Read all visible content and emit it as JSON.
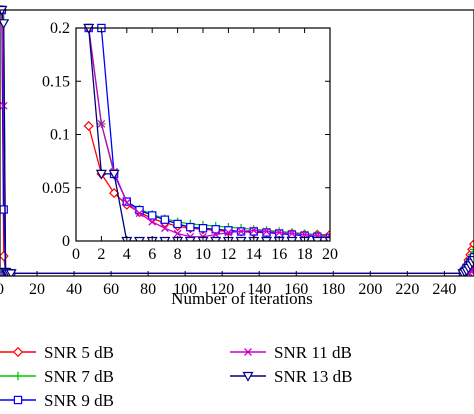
{
  "chart_data": [
    {
      "type": "line",
      "role": "main",
      "xlabel": "Number of iterations",
      "ylabel": "",
      "xlim": [
        0,
        256
      ],
      "ylim": [
        0,
        0.2
      ],
      "x_ticks": [
        0,
        20,
        40,
        60,
        80,
        100,
        120,
        140,
        160,
        180,
        200,
        220,
        240
      ],
      "x_tick_labels": [
        "0",
        "20",
        "40",
        "60",
        "80",
        "100",
        "120",
        "140",
        "160",
        "180",
        "200",
        "220",
        "240"
      ],
      "grid": false,
      "legend_position": "bottom",
      "series": [
        {
          "name": "SNR 5 dB",
          "color": "#ff0000",
          "marker": "diamond",
          "x": [
            0,
            1,
            2,
            3,
            4,
            5,
            6,
            250,
            251,
            252,
            253,
            254,
            255,
            256
          ],
          "y": [
            0.2,
            0.2,
            0.015,
            0.003,
            0.002,
            0.002,
            0.002,
            0.002,
            0.004,
            0.008,
            0.012,
            0.016,
            0.02,
            0.024
          ]
        },
        {
          "name": "SNR 7 dB",
          "color": "#00cc00",
          "marker": "plus",
          "x": [
            0,
            1,
            2,
            3,
            4,
            5,
            6,
            250,
            251,
            252,
            253,
            254,
            255,
            256
          ],
          "y": [
            0.2,
            0.2,
            0.2,
            0.003,
            0.002,
            0.002,
            0.002,
            0.002,
            0.004,
            0.007,
            0.01,
            0.013,
            0.016,
            0.02
          ]
        },
        {
          "name": "SNR 9 dB",
          "color": "#0000ff",
          "marker": "square",
          "x": [
            0,
            1,
            2,
            3,
            4,
            5,
            6,
            250,
            251,
            252,
            253,
            254,
            255,
            256
          ],
          "y": [
            0.2,
            0.2,
            0.05,
            0.003,
            0.002,
            0.002,
            0.002,
            0.002,
            0.004,
            0.006,
            0.008,
            0.01,
            0.012,
            0.014
          ]
        },
        {
          "name": "SNR 11 dB",
          "color": "#cc00cc",
          "marker": "x",
          "x": [
            0,
            1,
            2,
            3,
            4,
            5,
            6,
            250,
            251,
            252,
            253,
            254,
            255,
            256
          ],
          "y": [
            0.2,
            0.2,
            0.128,
            0.003,
            0.002,
            0.002,
            0.002,
            0.002,
            0.002,
            0.003,
            0.003,
            0.004,
            0.004,
            0.005
          ]
        },
        {
          "name": "SNR 13 dB",
          "color": "#000080",
          "marker": "triangle-down",
          "x": [
            0,
            1,
            2,
            3,
            4,
            5,
            6,
            250,
            251,
            252,
            253,
            254,
            255,
            256
          ],
          "y": [
            0.2,
            0.2,
            0.19,
            0.003,
            0.002,
            0.002,
            0.002,
            0.002,
            0.003,
            0.004,
            0.006,
            0.008,
            0.01,
            0.012
          ]
        }
      ]
    },
    {
      "type": "line",
      "role": "inset",
      "xlim": [
        0,
        20
      ],
      "ylim": [
        0,
        0.2
      ],
      "x_ticks": [
        0,
        2,
        4,
        6,
        8,
        10,
        12,
        14,
        16,
        18,
        20
      ],
      "x_tick_labels": [
        "0",
        "2",
        "4",
        "6",
        "8",
        "10",
        "12",
        "14",
        "16",
        "18",
        "20"
      ],
      "y_ticks": [
        0,
        0.05,
        0.1,
        0.15,
        0.2
      ],
      "y_tick_labels": [
        "0",
        "0.05",
        "0.1",
        "0.15",
        "0.2"
      ],
      "grid": false,
      "x": [
        1,
        2,
        3,
        4,
        5,
        6,
        7,
        8,
        9,
        10,
        11,
        12,
        13,
        14,
        15,
        16,
        17,
        18,
        19,
        20
      ],
      "series": [
        {
          "name": "SNR 5 dB",
          "color": "#ff0000",
          "marker": "diamond",
          "y": [
            0.108,
            0.063,
            0.045,
            0.034,
            0.027,
            0.021,
            0.017,
            0.014,
            0.012,
            0.011,
            0.01,
            0.009,
            0.009,
            0.008,
            0.008,
            0.007,
            0.007,
            0.006,
            0.006,
            0.006
          ]
        },
        {
          "name": "SNR 7 dB",
          "color": "#00cc00",
          "marker": "plus",
          "y": [
            0.2,
            0.11,
            0.063,
            0.037,
            0.03,
            0.025,
            0.021,
            0.018,
            0.016,
            0.015,
            0.014,
            0.013,
            0.012,
            0.011,
            0.01,
            0.009,
            0.008,
            0.007,
            0.006,
            0.005
          ]
        },
        {
          "name": "SNR 9 dB",
          "color": "#0000ff",
          "marker": "square",
          "y": [
            0.2,
            0.2,
            0.063,
            0.037,
            0.029,
            0.024,
            0.02,
            0.016,
            0.013,
            0.012,
            0.011,
            0.01,
            0.009,
            0.009,
            0.008,
            0.007,
            0.006,
            0.005,
            0.004,
            0.003
          ]
        },
        {
          "name": "SNR 11 dB",
          "color": "#cc00cc",
          "marker": "x",
          "y": [
            0.2,
            0.11,
            0.065,
            0.036,
            0.026,
            0.018,
            0.012,
            0.007,
            0.004,
            0.004,
            0.006,
            0.008,
            0.009,
            0.01,
            0.009,
            0.008,
            0.007,
            0.006,
            0.005,
            0.004
          ]
        },
        {
          "name": "SNR 13 dB",
          "color": "#000080",
          "marker": "triangle-down",
          "y": [
            0.2,
            0.063,
            0.063,
            0,
            0,
            0,
            0,
            0,
            0,
            0,
            0,
            0,
            0,
            0,
            0,
            0,
            0,
            0,
            0,
            0
          ]
        }
      ]
    }
  ]
}
